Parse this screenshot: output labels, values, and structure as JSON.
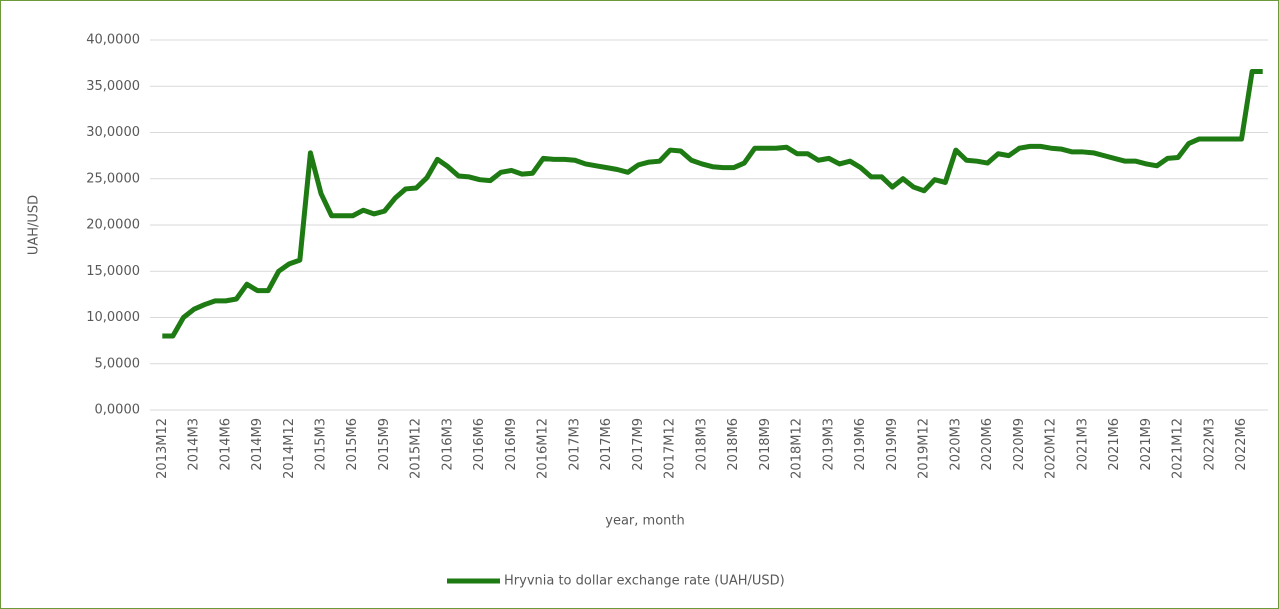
{
  "chart_data": {
    "type": "line",
    "y_label": "UAH/USD",
    "x_label": "year, month",
    "categories": [
      "2013M12",
      null,
      null,
      "2014M3",
      null,
      null,
      "2014M6",
      null,
      null,
      "2014M9",
      null,
      null,
      "2014M12",
      null,
      null,
      "2015M3",
      null,
      null,
      "2015M6",
      null,
      null,
      "2015M9",
      null,
      null,
      "2015M12",
      null,
      null,
      "2016M3",
      null,
      null,
      "2016M6",
      null,
      null,
      "2016M9",
      null,
      null,
      "2016M12",
      null,
      null,
      "2017M3",
      null,
      null,
      "2017M6",
      null,
      null,
      "2017M9",
      null,
      null,
      "2017M12",
      null,
      null,
      "2018M3",
      null,
      null,
      "2018M6",
      null,
      null,
      "2018M9",
      null,
      null,
      "2018M12",
      null,
      null,
      "2019M3",
      null,
      null,
      "2019M6",
      null,
      null,
      "2019M9",
      null,
      null,
      "2019M12",
      null,
      null,
      "2020M3",
      null,
      null,
      "2020M6",
      null,
      null,
      "2020M9",
      null,
      null,
      "2020M12",
      null,
      null,
      "2021M3",
      null,
      null,
      "2021M6",
      null,
      null,
      "2021M9",
      null,
      null,
      "2021M12",
      null,
      null,
      "2022M3",
      null,
      null,
      "2022M6",
      null,
      null
    ],
    "series": [
      {
        "name": "Hryvnia to dollar exchange rate (UAH/USD)",
        "color": "#1e7a12",
        "values": [
          8.0,
          8.0,
          10.0,
          10.9,
          11.4,
          11.8,
          11.8,
          12.0,
          13.6,
          12.9,
          12.9,
          15.0,
          15.8,
          16.2,
          27.8,
          23.4,
          21.0,
          21.0,
          21.0,
          21.6,
          21.2,
          21.5,
          22.9,
          23.9,
          24.0,
          25.1,
          27.1,
          26.3,
          25.3,
          25.2,
          24.9,
          24.8,
          25.7,
          25.9,
          25.5,
          25.6,
          27.2,
          27.1,
          27.1,
          27.0,
          26.6,
          26.4,
          26.2,
          26.0,
          25.7,
          26.5,
          26.8,
          26.9,
          28.1,
          28.0,
          27.0,
          26.6,
          26.3,
          26.2,
          26.2,
          26.7,
          28.3,
          28.3,
          28.3,
          28.4,
          27.7,
          27.7,
          27.0,
          27.2,
          26.6,
          26.9,
          26.2,
          25.2,
          25.2,
          24.1,
          25.0,
          24.1,
          23.7,
          24.9,
          24.6,
          28.1,
          27.0,
          26.9,
          26.7,
          27.7,
          27.5,
          28.3,
          28.5,
          28.5,
          28.3,
          28.2,
          27.9,
          27.9,
          27.8,
          27.5,
          27.2,
          26.9,
          26.9,
          26.6,
          26.4,
          27.2,
          27.3,
          28.8,
          29.3,
          29.3,
          29.3,
          29.3,
          29.3,
          36.6,
          36.6
        ]
      }
    ],
    "ylim": [
      0,
      40
    ],
    "yticks": [
      {
        "value": 0,
        "label": "0,0000"
      },
      {
        "value": 5,
        "label": "5,0000"
      },
      {
        "value": 10,
        "label": "10,0000"
      },
      {
        "value": 15,
        "label": "15,0000"
      },
      {
        "value": 20,
        "label": "20,0000"
      },
      {
        "value": 25,
        "label": "25,0000"
      },
      {
        "value": 30,
        "label": "30,0000"
      },
      {
        "value": 35,
        "label": "35,0000"
      },
      {
        "value": 40,
        "label": "40,0000"
      }
    ],
    "grid": true,
    "legend": "bottom"
  }
}
